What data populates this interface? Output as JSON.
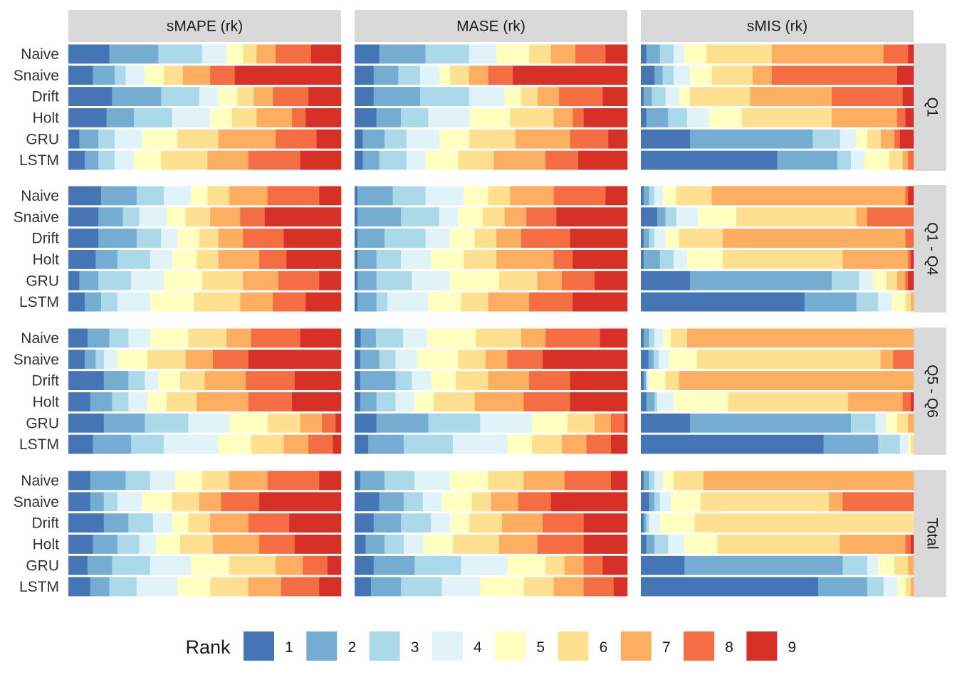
{
  "chart_data": {
    "type": "bar",
    "subtype": "stacked-proportion-horizontal-faceted",
    "columns": [
      "sMAPE (rk)",
      "MASE (rk)",
      "sMIS (rk)"
    ],
    "rows": [
      "Q1",
      "Q1 - Q4",
      "Q5 - Q6",
      "Total"
    ],
    "methods": [
      "Naive",
      "Snaive",
      "Drift",
      "Holt",
      "GRU",
      "LSTM"
    ],
    "legend": {
      "title": "Rank",
      "position": "bottom",
      "ranks": [
        "1",
        "2",
        "3",
        "4",
        "5",
        "6",
        "7",
        "8",
        "9"
      ],
      "colors": [
        "#4575b4",
        "#74add1",
        "#abd9e9",
        "#e0f3f8",
        "#ffffbf",
        "#fee090",
        "#fdae61",
        "#f46d43",
        "#d73027"
      ]
    },
    "values_note": "proportion of each rank (1..9) per method, each row sums to ~1",
    "panels": {
      "sMAPE (rk)": {
        "Q1": [
          [
            0.15,
            0.18,
            0.16,
            0.09,
            0.06,
            0.05,
            0.07,
            0.13,
            0.11
          ],
          [
            0.09,
            0.08,
            0.04,
            0.07,
            0.07,
            0.07,
            0.1,
            0.09,
            0.39
          ],
          [
            0.16,
            0.18,
            0.14,
            0.07,
            0.07,
            0.06,
            0.07,
            0.13,
            0.12
          ],
          [
            0.14,
            0.1,
            0.14,
            0.14,
            0.08,
            0.09,
            0.13,
            0.05,
            0.13
          ],
          [
            0.04,
            0.07,
            0.06,
            0.1,
            0.13,
            0.15,
            0.21,
            0.15,
            0.09
          ],
          [
            0.06,
            0.05,
            0.06,
            0.07,
            0.1,
            0.17,
            0.15,
            0.19,
            0.15
          ]
        ],
        "Q1 - Q4": [
          [
            0.12,
            0.13,
            0.1,
            0.1,
            0.06,
            0.08,
            0.14,
            0.19,
            0.08
          ],
          [
            0.11,
            0.09,
            0.06,
            0.1,
            0.07,
            0.09,
            0.11,
            0.09,
            0.28
          ],
          [
            0.11,
            0.14,
            0.09,
            0.06,
            0.08,
            0.07,
            0.09,
            0.15,
            0.21
          ],
          [
            0.1,
            0.08,
            0.12,
            0.08,
            0.09,
            0.08,
            0.15,
            0.1,
            0.2
          ],
          [
            0.04,
            0.07,
            0.12,
            0.12,
            0.14,
            0.15,
            0.13,
            0.15,
            0.08
          ],
          [
            0.06,
            0.06,
            0.06,
            0.12,
            0.16,
            0.17,
            0.12,
            0.12,
            0.13
          ]
        ],
        "Q5 - Q6": [
          [
            0.07,
            0.08,
            0.07,
            0.08,
            0.14,
            0.14,
            0.09,
            0.18,
            0.15
          ],
          [
            0.06,
            0.04,
            0.03,
            0.05,
            0.11,
            0.14,
            0.1,
            0.13,
            0.34
          ],
          [
            0.13,
            0.09,
            0.06,
            0.05,
            0.08,
            0.09,
            0.15,
            0.18,
            0.17
          ],
          [
            0.08,
            0.08,
            0.06,
            0.07,
            0.07,
            0.11,
            0.19,
            0.16,
            0.18
          ],
          [
            0.13,
            0.15,
            0.16,
            0.15,
            0.14,
            0.12,
            0.08,
            0.05,
            0.02
          ],
          [
            0.09,
            0.14,
            0.12,
            0.2,
            0.12,
            0.12,
            0.09,
            0.09,
            0.03
          ]
        ],
        "Total": [
          [
            0.08,
            0.13,
            0.09,
            0.09,
            0.1,
            0.1,
            0.14,
            0.19,
            0.08
          ],
          [
            0.08,
            0.05,
            0.05,
            0.09,
            0.11,
            0.1,
            0.08,
            0.14,
            0.3
          ],
          [
            0.13,
            0.09,
            0.09,
            0.07,
            0.06,
            0.08,
            0.14,
            0.15,
            0.19
          ],
          [
            0.09,
            0.09,
            0.08,
            0.06,
            0.09,
            0.12,
            0.17,
            0.13,
            0.17
          ],
          [
            0.07,
            0.09,
            0.14,
            0.15,
            0.14,
            0.17,
            0.1,
            0.09,
            0.05
          ],
          [
            0.08,
            0.07,
            0.1,
            0.15,
            0.12,
            0.14,
            0.12,
            0.14,
            0.08
          ]
        ]
      },
      "MASE (rk)": {
        "Q1": [
          [
            0.09,
            0.17,
            0.16,
            0.1,
            0.12,
            0.08,
            0.09,
            0.11,
            0.08
          ],
          [
            0.07,
            0.09,
            0.08,
            0.07,
            0.04,
            0.07,
            0.07,
            0.09,
            0.42
          ],
          [
            0.07,
            0.17,
            0.18,
            0.13,
            0.06,
            0.06,
            0.08,
            0.16,
            0.09
          ],
          [
            0.08,
            0.09,
            0.1,
            0.15,
            0.15,
            0.16,
            0.07,
            0.04,
            0.16
          ],
          [
            0.03,
            0.08,
            0.08,
            0.12,
            0.11,
            0.17,
            0.2,
            0.14,
            0.07
          ],
          [
            0.03,
            0.06,
            0.1,
            0.07,
            0.12,
            0.13,
            0.19,
            0.12,
            0.18
          ]
        ],
        "Q1 - Q4": [
          [
            0.01,
            0.13,
            0.12,
            0.14,
            0.09,
            0.08,
            0.16,
            0.19,
            0.08
          ],
          [
            0.01,
            0.16,
            0.14,
            0.07,
            0.09,
            0.08,
            0.08,
            0.11,
            0.26
          ],
          [
            0.01,
            0.1,
            0.15,
            0.09,
            0.09,
            0.08,
            0.09,
            0.18,
            0.21
          ],
          [
            0.01,
            0.07,
            0.09,
            0.11,
            0.12,
            0.12,
            0.21,
            0.07,
            0.2
          ],
          [
            0.01,
            0.07,
            0.13,
            0.14,
            0.18,
            0.14,
            0.09,
            0.12,
            0.12
          ],
          [
            0.01,
            0.07,
            0.04,
            0.15,
            0.12,
            0.1,
            0.15,
            0.16,
            0.2
          ]
        ],
        "Q5 - Q6": [
          [
            0.02,
            0.05,
            0.09,
            0.08,
            0.16,
            0.15,
            0.08,
            0.18,
            0.09
          ],
          [
            0.02,
            0.07,
            0.06,
            0.08,
            0.15,
            0.1,
            0.08,
            0.13,
            0.31
          ],
          [
            0.02,
            0.13,
            0.06,
            0.07,
            0.09,
            0.12,
            0.15,
            0.15,
            0.21
          ],
          [
            0.02,
            0.06,
            0.07,
            0.07,
            0.07,
            0.15,
            0.18,
            0.17,
            0.21
          ],
          [
            0.08,
            0.19,
            0.19,
            0.19,
            0.13,
            0.1,
            0.06,
            0.05,
            0.01
          ],
          [
            0.05,
            0.13,
            0.18,
            0.2,
            0.09,
            0.11,
            0.09,
            0.09,
            0.06
          ]
        ],
        "Total": [
          [
            0.02,
            0.09,
            0.11,
            0.13,
            0.14,
            0.13,
            0.15,
            0.17,
            0.06
          ],
          [
            0.09,
            0.09,
            0.07,
            0.07,
            0.11,
            0.07,
            0.1,
            0.12,
            0.28
          ],
          [
            0.07,
            0.1,
            0.11,
            0.07,
            0.07,
            0.12,
            0.15,
            0.15,
            0.16
          ],
          [
            0.04,
            0.07,
            0.07,
            0.07,
            0.11,
            0.17,
            0.14,
            0.17,
            0.16
          ],
          [
            0.07,
            0.15,
            0.17,
            0.17,
            0.14,
            0.07,
            0.07,
            0.07,
            0.09
          ],
          [
            0.06,
            0.11,
            0.15,
            0.14,
            0.16,
            0.11,
            0.11,
            0.11,
            0.05
          ]
        ]
      },
      "sMIS (rk)": {
        "Q1": [
          [
            0.02,
            0.05,
            0.05,
            0.04,
            0.08,
            0.24,
            0.41,
            0.09,
            0.02
          ],
          [
            0.05,
            0.03,
            0.04,
            0.06,
            0.08,
            0.15,
            0.07,
            0.46,
            0.06
          ],
          [
            0.01,
            0.03,
            0.05,
            0.05,
            0.04,
            0.22,
            0.3,
            0.26,
            0.04
          ],
          [
            0.02,
            0.08,
            0.07,
            0.08,
            0.12,
            0.33,
            0.24,
            0.03,
            0.03
          ],
          [
            0.18,
            0.45,
            0.1,
            0.06,
            0.04,
            0.05,
            0.05,
            0.02,
            0.05
          ],
          [
            0.5,
            0.22,
            0.05,
            0.05,
            0.09,
            0.05,
            0.02,
            0.02,
            0.0
          ]
        ],
        "Q1 - Q4": [
          [
            0.01,
            0.02,
            0.02,
            0.03,
            0.05,
            0.13,
            0.71,
            0.01,
            0.02
          ],
          [
            0.06,
            0.03,
            0.04,
            0.08,
            0.14,
            0.44,
            0.04,
            0.17,
            0.0
          ],
          [
            0.01,
            0.02,
            0.02,
            0.04,
            0.05,
            0.16,
            0.67,
            0.03,
            0.0
          ],
          [
            0.01,
            0.06,
            0.05,
            0.05,
            0.13,
            0.44,
            0.24,
            0.01,
            0.01
          ],
          [
            0.18,
            0.52,
            0.1,
            0.05,
            0.05,
            0.04,
            0.03,
            0.01,
            0.02
          ],
          [
            0.6,
            0.19,
            0.08,
            0.05,
            0.05,
            0.02,
            0.01,
            0.0,
            0.0
          ]
        ],
        "Q5 - Q6": [
          [
            0.01,
            0.02,
            0.02,
            0.03,
            0.03,
            0.06,
            0.83,
            0.0,
            0.0
          ],
          [
            0.03,
            0.02,
            0.02,
            0.04,
            0.11,
            0.72,
            0.05,
            0.08,
            0.0
          ],
          [
            0.01,
            0.01,
            0.0,
            0.01,
            0.06,
            0.05,
            0.86,
            0.0,
            0.0
          ],
          [
            0.02,
            0.03,
            0.01,
            0.06,
            0.2,
            0.44,
            0.2,
            0.03,
            0.01
          ],
          [
            0.18,
            0.59,
            0.09,
            0.04,
            0.04,
            0.04,
            0.02,
            0.0,
            0.0
          ],
          [
            0.67,
            0.2,
            0.08,
            0.03,
            0.01,
            0.01,
            0.0,
            0.0,
            0.0
          ]
        ],
        "Total": [
          [
            0.01,
            0.02,
            0.02,
            0.03,
            0.04,
            0.11,
            0.77,
            0.0,
            0.0
          ],
          [
            0.03,
            0.02,
            0.02,
            0.04,
            0.11,
            0.47,
            0.05,
            0.26,
            0.0
          ],
          [
            0.01,
            0.01,
            0.01,
            0.04,
            0.13,
            0.81,
            0.0,
            0.0,
            0.0
          ],
          [
            0.02,
            0.03,
            0.05,
            0.06,
            0.12,
            0.45,
            0.24,
            0.02,
            0.01
          ],
          [
            0.16,
            0.58,
            0.09,
            0.04,
            0.06,
            0.05,
            0.02,
            0.0,
            0.0
          ],
          [
            0.65,
            0.18,
            0.06,
            0.05,
            0.03,
            0.02,
            0.01,
            0.0,
            0.0
          ]
        ]
      }
    }
  }
}
